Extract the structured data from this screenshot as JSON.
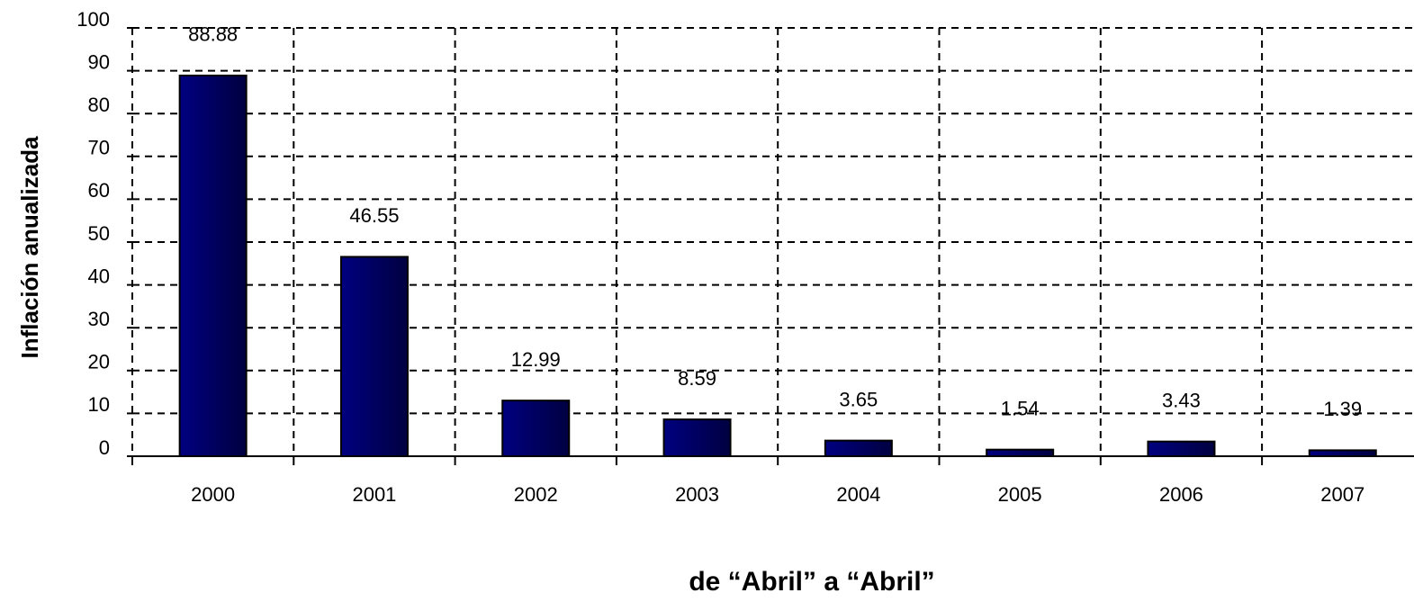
{
  "chart_data": {
    "type": "bar",
    "y_label": "Inflación anualizada",
    "x_label": "de “Abril” a “Abril”",
    "categories": [
      "2000",
      "2001",
      "2002",
      "2003",
      "2004",
      "2005",
      "2006",
      "2007"
    ],
    "values": [
      88.88,
      46.55,
      12.99,
      8.59,
      3.65,
      1.54,
      3.43,
      1.39
    ],
    "color": "#000080",
    "ylim": [
      0,
      100
    ],
    "yticks": [
      0,
      10,
      20,
      30,
      40,
      50,
      60,
      70,
      80,
      90,
      100
    ],
    "grid": true
  }
}
